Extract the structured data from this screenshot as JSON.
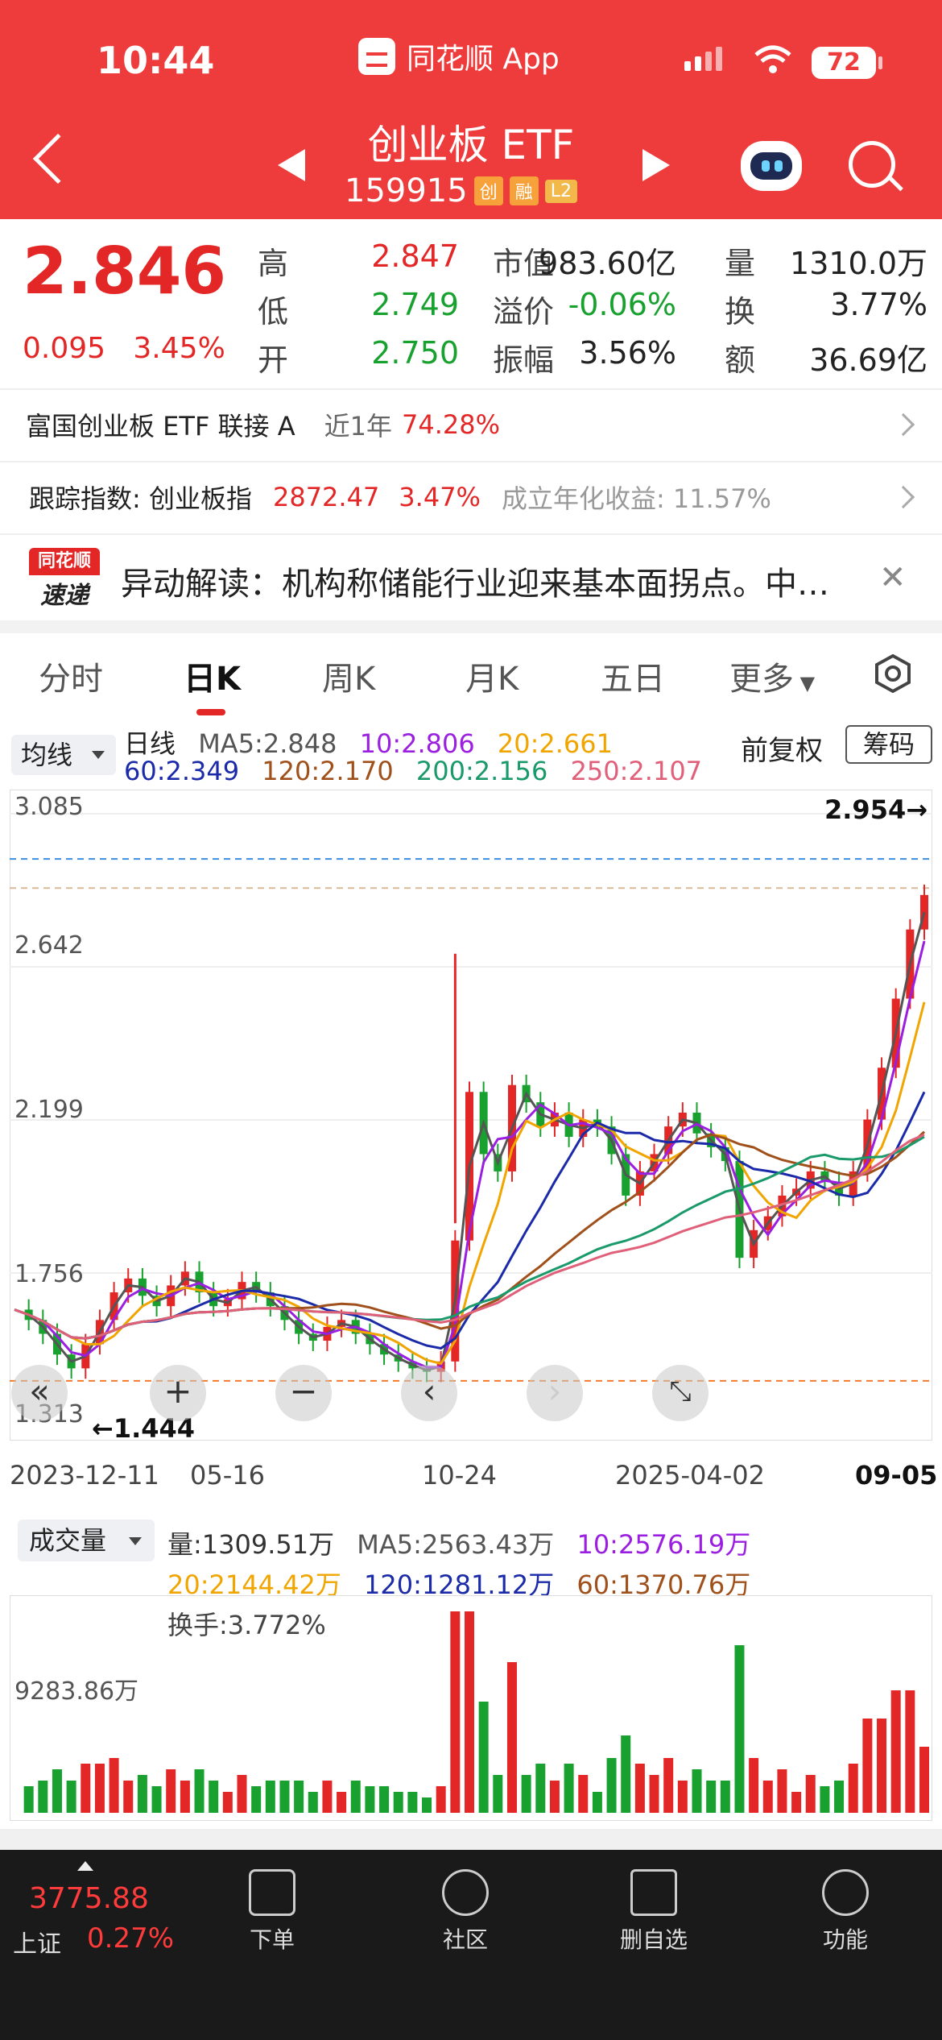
{
  "status_bar": {
    "time": "10:44",
    "app_name": "同花顺 App",
    "battery": "72"
  },
  "header": {
    "name": "创业板 ETF",
    "code": "159915",
    "tags": [
      "创",
      "融",
      "L2"
    ]
  },
  "quote": {
    "price": "2.846",
    "change": "0.095",
    "change_pct": "3.45%",
    "fields": [
      {
        "label": "高",
        "value": "2.847",
        "color": "#e32626"
      },
      {
        "label": "低",
        "value": "2.749",
        "color": "#18a12e"
      },
      {
        "label": "开",
        "value": "2.750",
        "color": "#18a12e"
      },
      {
        "label": "市值",
        "value": "983.60亿",
        "color": "#222222"
      },
      {
        "label": "溢价",
        "value": "-0.06%",
        "color": "#18a12e"
      },
      {
        "label": "振幅",
        "value": "3.56%",
        "color": "#222222"
      },
      {
        "label": "量",
        "value": "1310.0万",
        "color": "#222222"
      },
      {
        "label": "换",
        "value": "3.77%",
        "color": "#222222"
      },
      {
        "label": "额",
        "value": "36.69亿",
        "color": "#222222"
      }
    ]
  },
  "fund_row": {
    "name": "富国创业板 ETF 联接 A",
    "period": "近1年",
    "return": "74.28%"
  },
  "index_row": {
    "label": "跟踪指数: 创业板指",
    "value": "2872.47",
    "pct": "3.47%",
    "annual": "成立年化收益: 11.57%"
  },
  "news": {
    "logo_top": "同花顺",
    "logo_bottom": "速递",
    "text": "异动解读：机构称储能行业迎来基本面拐点。中…"
  },
  "tabs": [
    "分时",
    "日K",
    "周K",
    "月K",
    "五日",
    "更多"
  ],
  "ma_legend": {
    "button": "均线",
    "period": "日线",
    "items": [
      {
        "text": "MA5:2.848",
        "color": "#555555"
      },
      {
        "text": "10:2.806",
        "color": "#9b1fe0"
      },
      {
        "text": "20:2.661",
        "color": "#f0a500"
      },
      {
        "text": "60:2.349",
        "color": "#1a2aa8"
      },
      {
        "text": "120:2.170",
        "color": "#a0501a"
      },
      {
        "text": "200:2.156",
        "color": "#1a9a6a"
      },
      {
        "text": "250:2.107",
        "color": "#e0607a"
      }
    ],
    "adjust": "前复权",
    "chip": "筹码"
  },
  "chart_data": {
    "type": "candlestick",
    "ylim": [
      1.313,
      3.085
    ],
    "y_ticks": [
      "3.085",
      "2.642",
      "2.199",
      "1.756",
      "1.313"
    ],
    "x_ticks": [
      "2023-12-11",
      "05-16",
      "10-24",
      "2025-04-02",
      "09-05"
    ],
    "high_marker": "2.954→",
    "low_marker": "←1.444",
    "close_series": [
      1.65,
      1.62,
      1.58,
      1.52,
      1.48,
      1.55,
      1.62,
      1.7,
      1.74,
      1.69,
      1.66,
      1.72,
      1.76,
      1.7,
      1.66,
      1.68,
      1.73,
      1.7,
      1.66,
      1.62,
      1.58,
      1.56,
      1.6,
      1.62,
      1.58,
      1.55,
      1.52,
      1.5,
      1.48,
      1.47,
      1.5,
      1.85,
      2.28,
      2.1,
      2.05,
      2.3,
      2.25,
      2.18,
      2.22,
      2.15,
      2.2,
      2.18,
      2.1,
      1.98,
      2.05,
      2.1,
      2.18,
      2.22,
      2.16,
      2.12,
      2.08,
      1.8,
      1.88,
      1.92,
      1.98,
      2.0,
      2.05,
      2.02,
      1.98,
      2.05,
      2.2,
      2.35,
      2.55,
      2.75,
      2.85
    ]
  },
  "volume": {
    "button": "成交量",
    "items1": [
      {
        "text": "量:1309.51万",
        "color": "#333333"
      },
      {
        "text": "MA5:2563.43万",
        "color": "#555555"
      },
      {
        "text": "10:2576.19万",
        "color": "#9b1fe0"
      }
    ],
    "items2": [
      {
        "text": "20:2144.42万",
        "color": "#f0a500"
      },
      {
        "text": "120:1281.12万",
        "color": "#1a2aa8"
      },
      {
        "text": "60:1370.76万",
        "color": "#a0501a"
      }
    ],
    "turnover": "换手:3.772%",
    "y_tick": "9283.86万"
  },
  "bottom_bar": {
    "index_value": "3775.88",
    "index_name": "上证",
    "index_pct": "0.27%",
    "nav": [
      "下单",
      "社区",
      "删自选",
      "功能"
    ]
  }
}
